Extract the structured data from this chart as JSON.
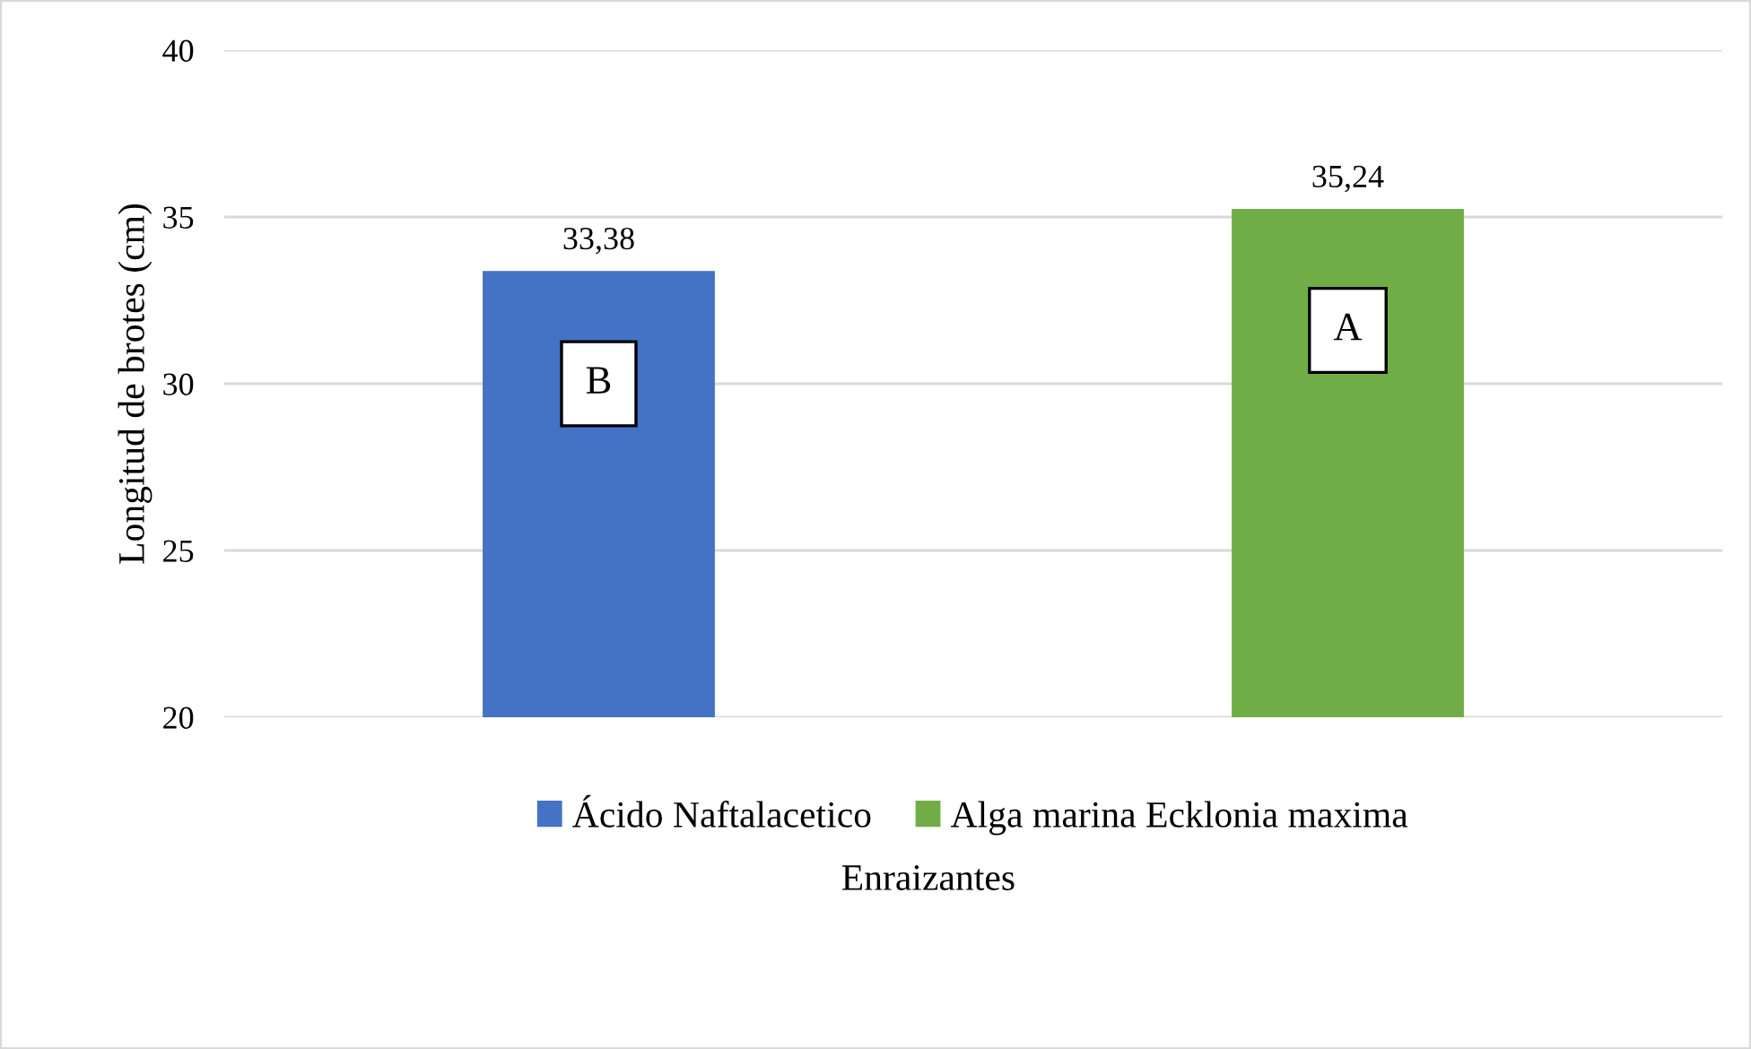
{
  "chart_data": {
    "type": "bar",
    "xlabel": "Enraizantes",
    "ylabel": "Longitud de brotes (cm)",
    "categories": [
      null,
      null
    ],
    "series": [
      {
        "name": "Ácido Naftalacetico",
        "color": "#4472c4",
        "values": [
          33.38,
          null
        ],
        "value_labels": [
          "33,38",
          null
        ]
      },
      {
        "name": "Alga marina Ecklonia maxima",
        "color": "#70ad47",
        "values": [
          null,
          35.24
        ],
        "value_labels": [
          null,
          "35,24"
        ]
      }
    ],
    "annotations": [
      "B",
      "A"
    ],
    "ylim": [
      20,
      40
    ],
    "yticks": [
      20,
      25,
      30,
      35,
      40
    ],
    "grid": "y",
    "legend": "bottom"
  }
}
